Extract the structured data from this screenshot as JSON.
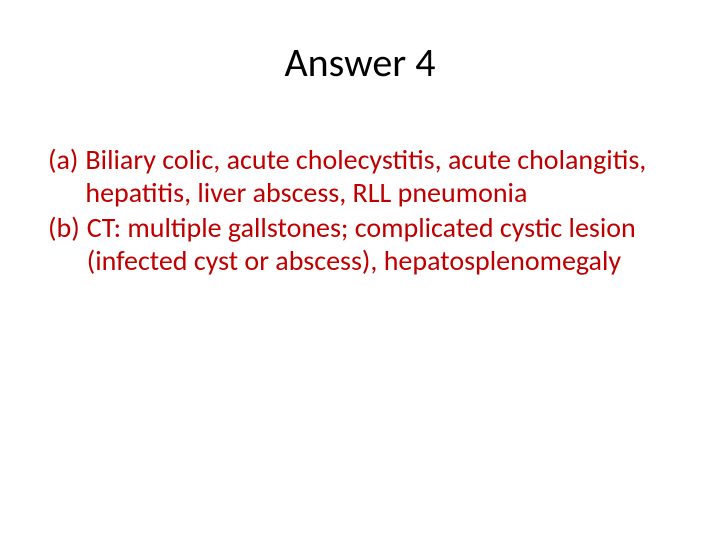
{
  "colors": {
    "text": "#c00000",
    "title": "#000000",
    "background": "#ffffff"
  },
  "typography": {
    "title_fontsize": 40,
    "body_fontsize": 28,
    "font_family": "Calibri"
  },
  "title": "Answer 4",
  "items": [
    {
      "marker": "(a)",
      "text": "Biliary colic, acute cholecystitis, acute cholangitis, hepatitis, liver abscess, RLL pneumonia"
    },
    {
      "marker": "(b)",
      "text": "CT: multiple gallstones; complicated cystic lesion (infected cyst or abscess), hepatosplenomegaly"
    }
  ]
}
